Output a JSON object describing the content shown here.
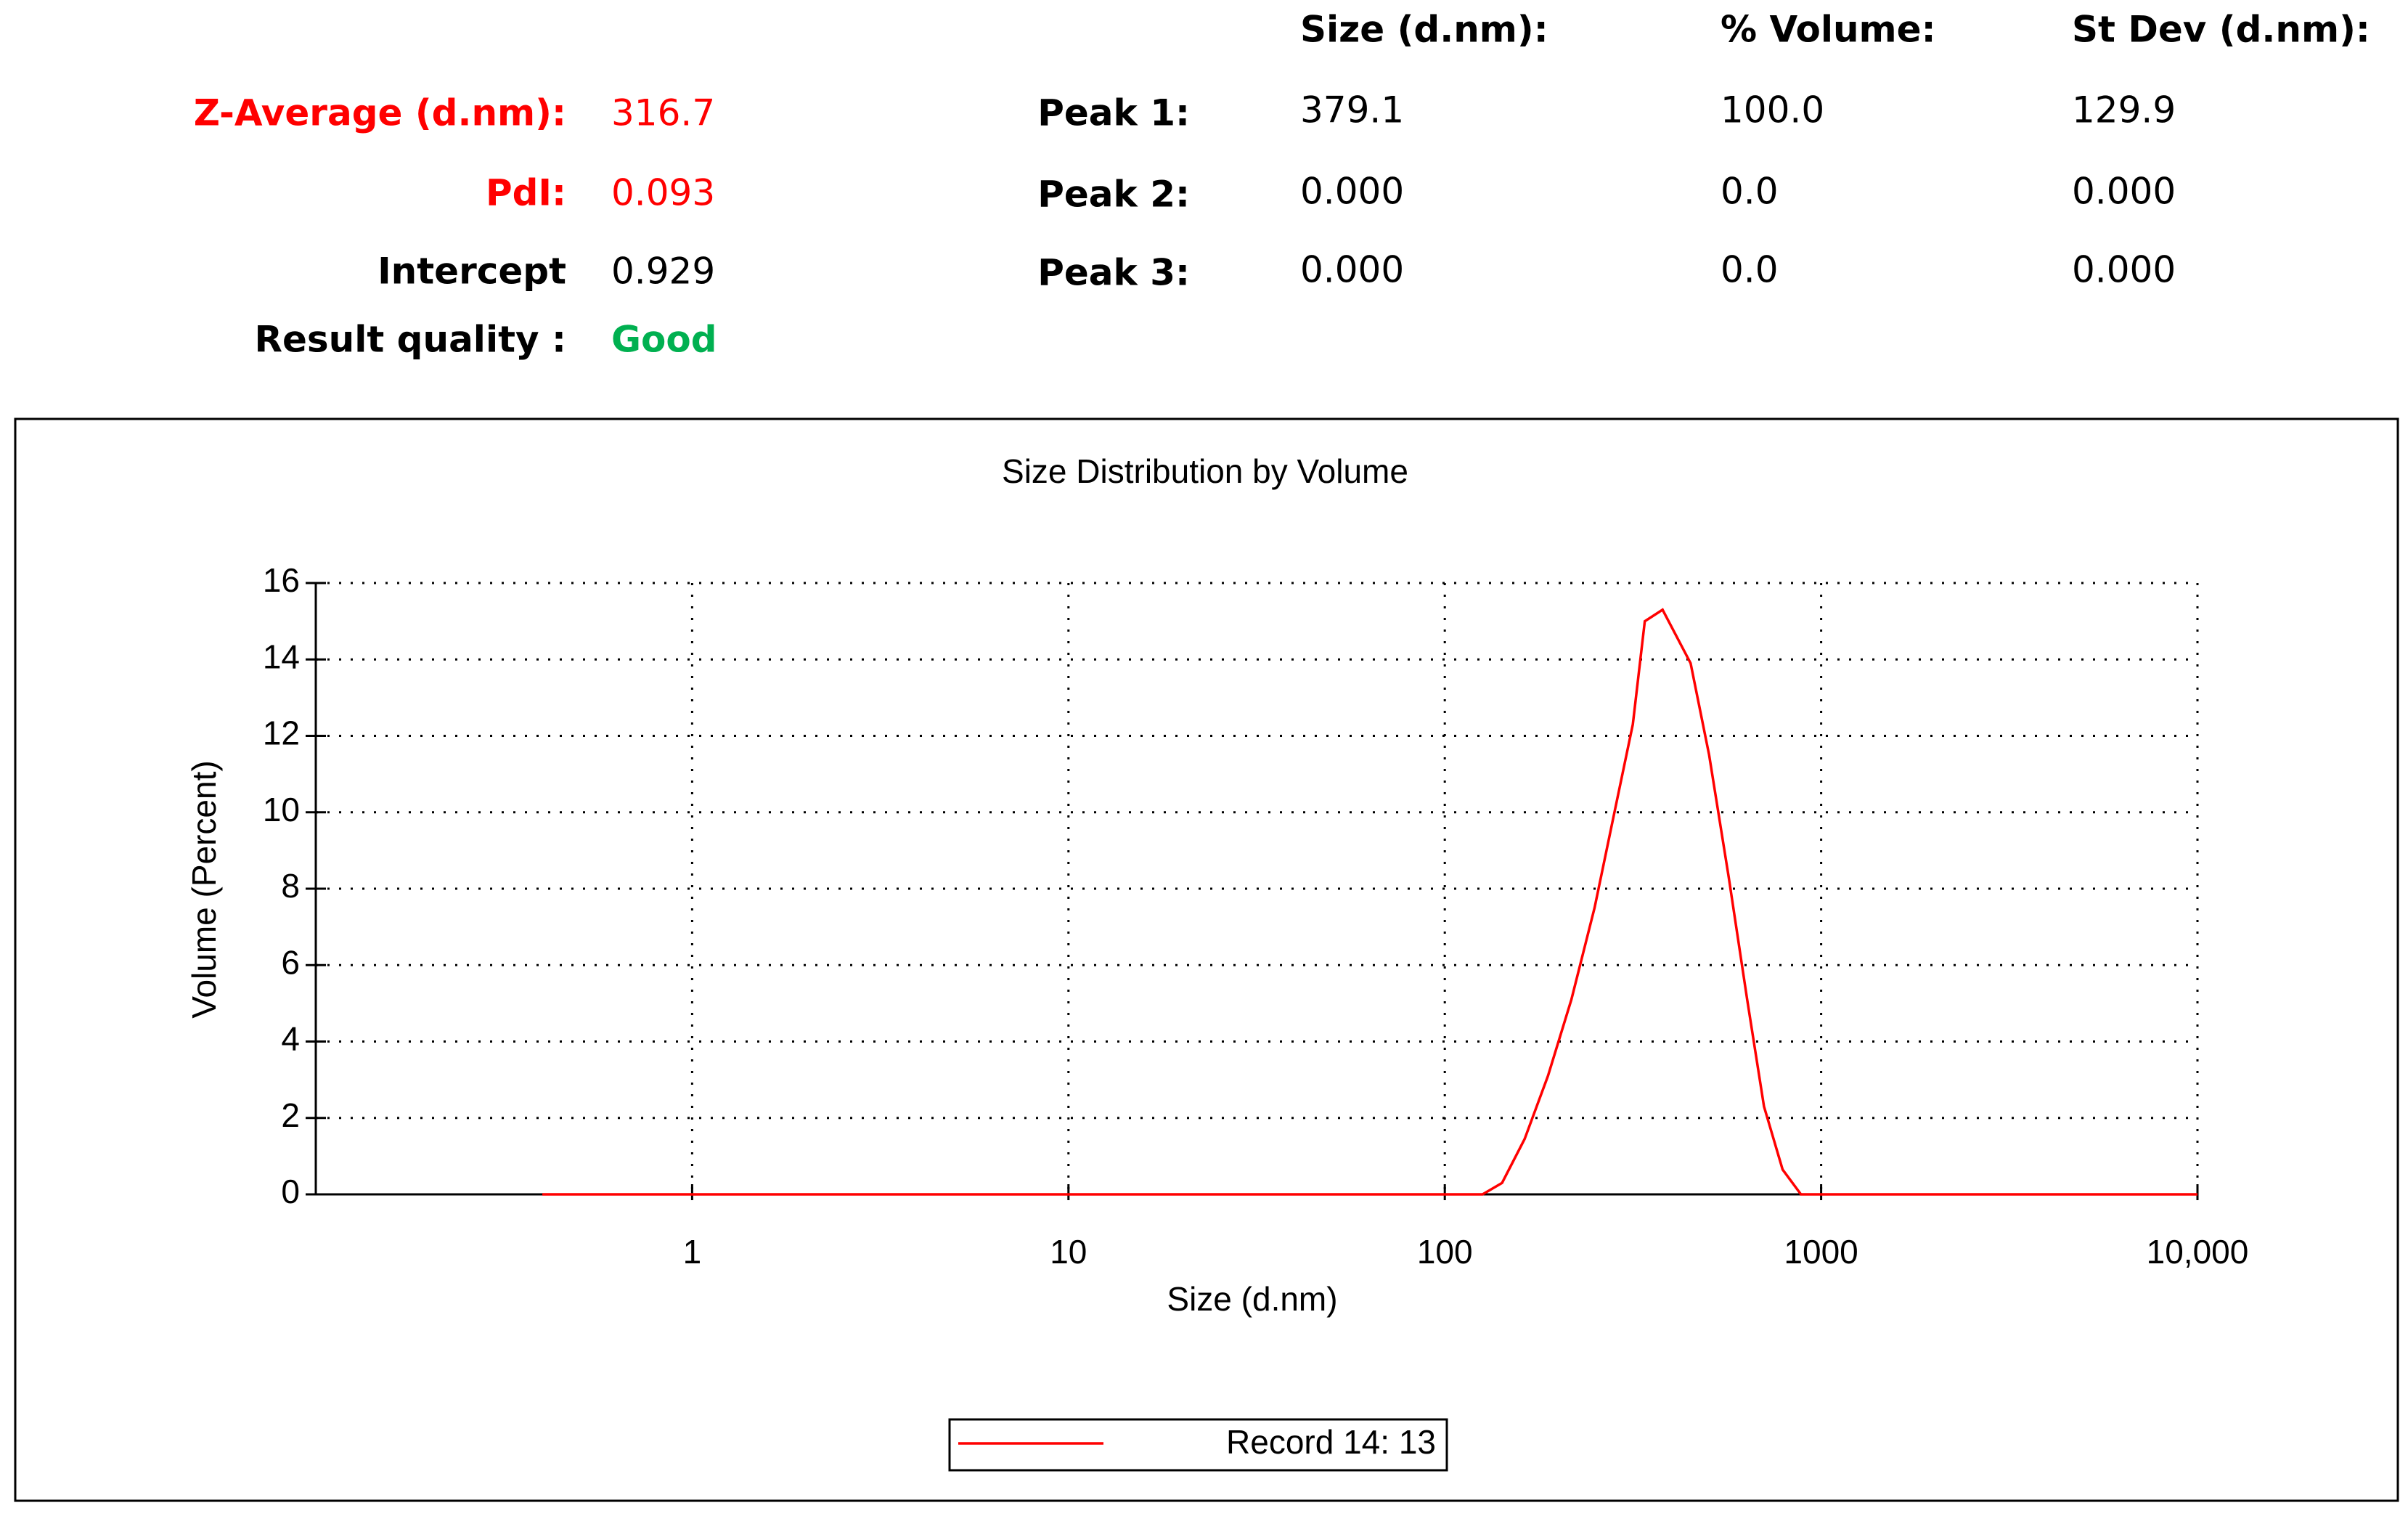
{
  "summary": {
    "rows": [
      {
        "label": "Z-Average (d.nm):",
        "value": "316.7",
        "label_color": "#ff0000",
        "value_color": "#ff0000"
      },
      {
        "label": "PdI:",
        "value": "0.093",
        "label_color": "#ff0000",
        "value_color": "#ff0000"
      },
      {
        "label": "Intercept",
        "value": "0.929",
        "label_color": "#000000",
        "value_color": "#000000"
      },
      {
        "label": "Result quality :",
        "value": "Good",
        "label_color": "#000000",
        "value_color": "#00b050"
      }
    ]
  },
  "peaks": {
    "headers": [
      "Size (d.nm):",
      "% Volume:",
      "St Dev (d.nm):"
    ],
    "rows": [
      {
        "label": "Peak 1:",
        "values": [
          "379.1",
          "100.0",
          "129.9"
        ]
      },
      {
        "label": "Peak 2:",
        "values": [
          "0.000",
          "0.0",
          "0.000"
        ]
      },
      {
        "label": "Peak 3:",
        "values": [
          "0.000",
          "0.0",
          "0.000"
        ]
      }
    ]
  },
  "chart_data": {
    "type": "line",
    "title": "Size Distribution by Volume",
    "x_label": "Size (d.nm)",
    "y_label": "Volume (Percent)",
    "x_scale": "log",
    "grid": true,
    "x": [
      0.4,
      1,
      10,
      100,
      126,
      142,
      163,
      188,
      217,
      250,
      281,
      316,
      340,
      379,
      450,
      504,
      568,
      636,
      705,
      790,
      884,
      1000,
      10000
    ],
    "series": [
      {
        "name": "Record 14: 13",
        "color": "#ff0000",
        "values": [
          0,
          0,
          0,
          0,
          0,
          0.3,
          1.45,
          3.1,
          5.1,
          7.5,
          9.9,
          12.3,
          15.0,
          15.3,
          13.9,
          11.5,
          8.3,
          5.1,
          2.3,
          0.65,
          0,
          0,
          0
        ]
      }
    ],
    "xlim": [
      0.1,
      10000
    ],
    "xticks": [
      1,
      10,
      100,
      1000,
      {
        "value": 10000,
        "label": "10,000"
      }
    ],
    "ylim": [
      0,
      16
    ],
    "yticks": [
      0,
      2,
      4,
      6,
      8,
      10,
      12,
      14,
      16
    ]
  }
}
